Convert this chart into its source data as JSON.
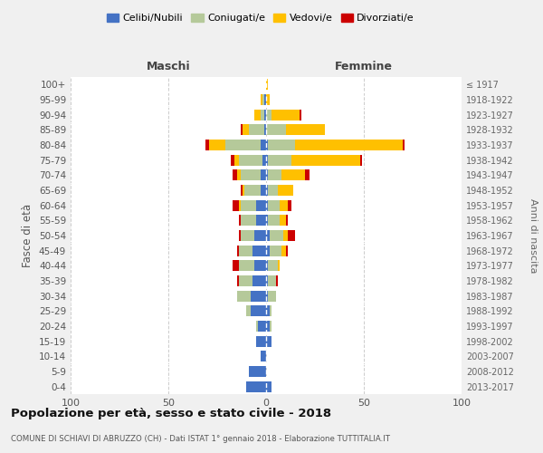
{
  "age_groups": [
    "100+",
    "95-99",
    "90-94",
    "85-89",
    "80-84",
    "75-79",
    "70-74",
    "65-69",
    "60-64",
    "55-59",
    "50-54",
    "45-49",
    "40-44",
    "35-39",
    "30-34",
    "25-29",
    "20-24",
    "15-19",
    "10-14",
    "5-9",
    "0-4"
  ],
  "birth_years": [
    "≤ 1917",
    "1918-1922",
    "1923-1927",
    "1928-1932",
    "1933-1937",
    "1938-1942",
    "1943-1947",
    "1948-1952",
    "1953-1957",
    "1958-1962",
    "1963-1967",
    "1968-1972",
    "1973-1977",
    "1978-1982",
    "1983-1987",
    "1988-1992",
    "1993-1997",
    "1998-2002",
    "2003-2007",
    "2008-2012",
    "2013-2017"
  ],
  "colors": {
    "celibi": "#4472c4",
    "coniugati": "#b5c99a",
    "vedovi": "#ffc000",
    "divorziati": "#cc0000"
  },
  "legend_colors": {
    "Celibi/Nubili": "#4472c4",
    "Coniugati/e": "#b5c99a",
    "Vedovi/e": "#ffc000",
    "Divorziati/e": "#cc0000"
  },
  "maschi": {
    "celibi": [
      0,
      1,
      1,
      1,
      3,
      2,
      3,
      3,
      5,
      5,
      6,
      7,
      6,
      7,
      8,
      8,
      4,
      5,
      3,
      9,
      10
    ],
    "coniugati": [
      0,
      1,
      2,
      8,
      18,
      12,
      10,
      8,
      8,
      8,
      7,
      7,
      8,
      7,
      7,
      2,
      1,
      0,
      0,
      0,
      0
    ],
    "vedovi": [
      0,
      1,
      3,
      3,
      8,
      2,
      2,
      1,
      1,
      0,
      0,
      0,
      0,
      0,
      0,
      0,
      0,
      0,
      0,
      0,
      0
    ],
    "divorziati": [
      0,
      0,
      0,
      1,
      2,
      2,
      2,
      1,
      3,
      1,
      1,
      1,
      3,
      1,
      0,
      0,
      0,
      0,
      0,
      0,
      0
    ]
  },
  "femmine": {
    "celibi": [
      0,
      0,
      0,
      0,
      1,
      1,
      1,
      1,
      1,
      1,
      2,
      2,
      1,
      1,
      1,
      2,
      2,
      3,
      0,
      0,
      3
    ],
    "coniugati": [
      0,
      0,
      3,
      10,
      14,
      12,
      7,
      5,
      6,
      6,
      7,
      6,
      5,
      4,
      4,
      1,
      1,
      0,
      0,
      0,
      0
    ],
    "vedovi": [
      1,
      2,
      14,
      20,
      55,
      35,
      12,
      8,
      4,
      3,
      2,
      2,
      1,
      0,
      0,
      0,
      0,
      0,
      0,
      0,
      0
    ],
    "divorziati": [
      0,
      0,
      1,
      0,
      1,
      1,
      2,
      0,
      2,
      1,
      4,
      1,
      0,
      1,
      0,
      0,
      0,
      0,
      0,
      0,
      0
    ]
  },
  "xlim": 100,
  "title": "Popolazione per età, sesso e stato civile - 2018",
  "subtitle": "COMUNE DI SCHIAVI DI ABRUZZO (CH) - Dati ISTAT 1° gennaio 2018 - Elaborazione TUTTITALIA.IT",
  "ylabel_left": "Fasce di età",
  "ylabel_right": "Anni di nascita",
  "xlabel_left": "Maschi",
  "xlabel_right": "Femmine",
  "bg_color": "#f0f0f0",
  "plot_bg": "#ffffff"
}
